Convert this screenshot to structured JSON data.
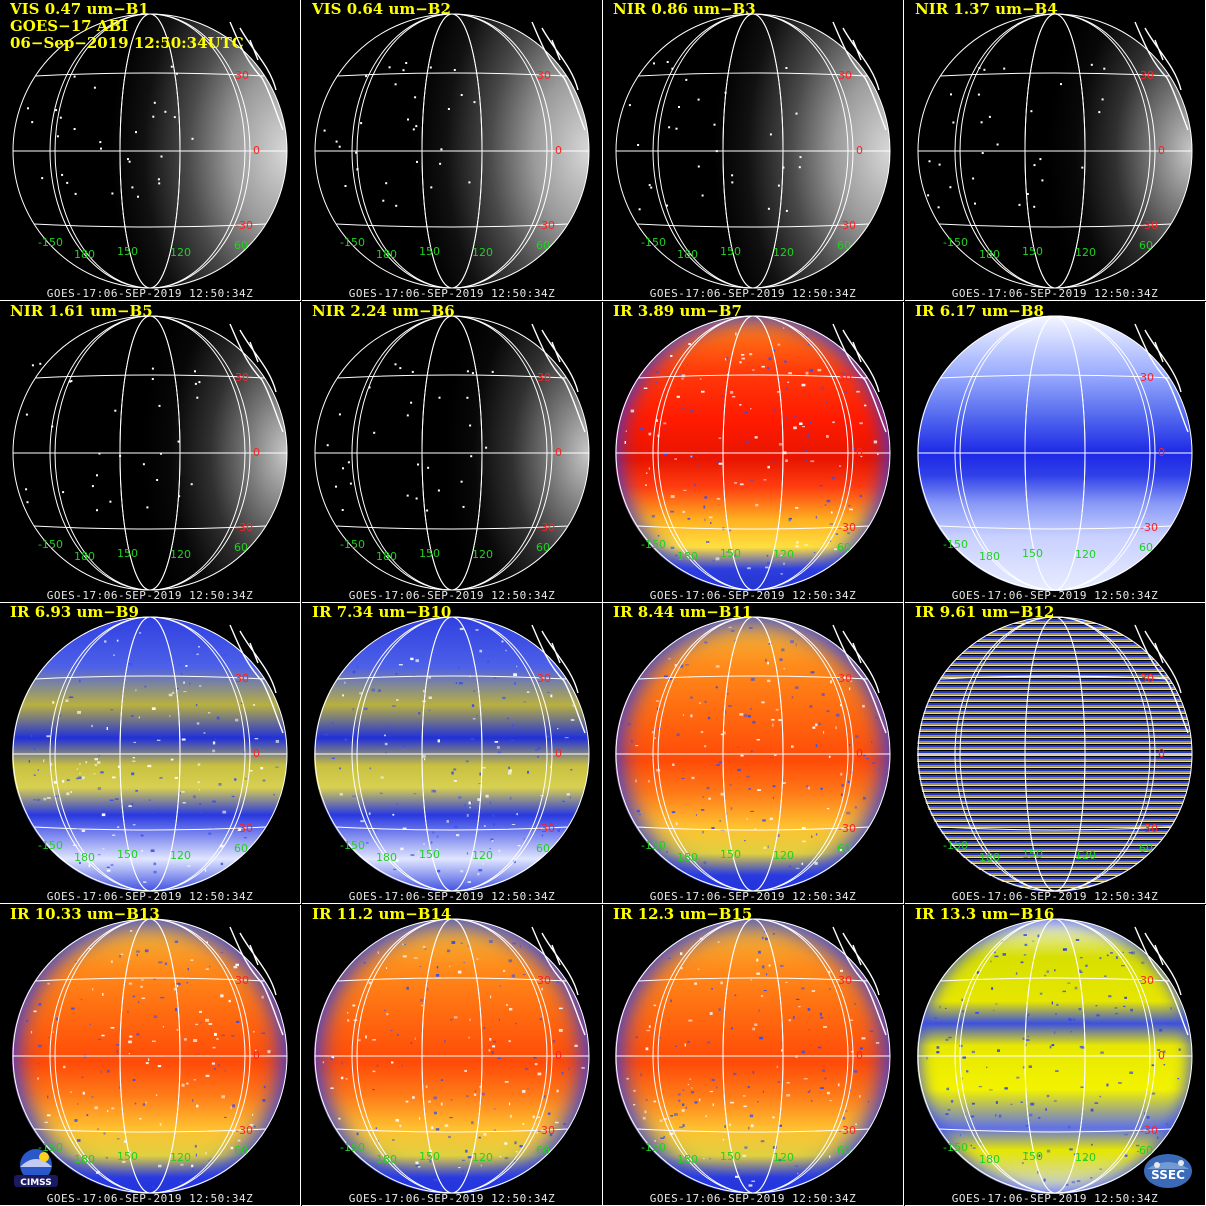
{
  "header": {
    "satellite": "GOES−17 ABI",
    "datetime": "06−Sep−2019 12:50:34UTC"
  },
  "footer_stamp": "GOES-17:06-SEP-2019  12:50:34Z",
  "labels": {
    "lat": [
      "30",
      "0",
      "-30"
    ],
    "lon": [
      "-150",
      "180",
      "150",
      "120",
      "60"
    ]
  },
  "colors": {
    "title": "#ffff00",
    "lat_label": "#ff2020",
    "lon_label": "#20d020",
    "grid": "#ffffff"
  },
  "panels": [
    {
      "title": "VIS 0.47 um−B1",
      "style": "vis",
      "icon": "visible-band-globe"
    },
    {
      "title": "VIS 0.64 um−B2",
      "style": "vis",
      "icon": "visible-band-globe"
    },
    {
      "title": "NIR 0.86 um−B3",
      "style": "vis",
      "icon": "visible-band-globe"
    },
    {
      "title": "NIR 1.37 um−B4",
      "style": "visdim",
      "icon": "visible-band-globe"
    },
    {
      "title": "NIR 1.61 um−B5",
      "style": "visdim",
      "icon": "visible-band-globe"
    },
    {
      "title": "NIR 2.24 um−B6",
      "style": "visdim",
      "icon": "visible-band-globe"
    },
    {
      "title": "IR 3.89 um−B7",
      "style": "red",
      "icon": "infrared-globe"
    },
    {
      "title": "IR 6.17 um−B8",
      "style": "blue",
      "icon": "water-vapor-globe"
    },
    {
      "title": "IR 6.93 um−B9",
      "style": "bluey",
      "icon": "water-vapor-globe"
    },
    {
      "title": "IR 7.34 um−B10",
      "style": "bluey",
      "icon": "water-vapor-globe"
    },
    {
      "title": "IR 8.44 um−B11",
      "style": "orange",
      "icon": "infrared-globe"
    },
    {
      "title": "IR 9.61 um−B12",
      "style": "striped",
      "icon": "ozone-band-globe"
    },
    {
      "title": "IR 10.33 um−B13",
      "style": "orange",
      "icon": "infrared-globe"
    },
    {
      "title": "IR 11.2 um−B14",
      "style": "orange",
      "icon": "infrared-globe"
    },
    {
      "title": "IR 12.3 um−B15",
      "style": "orange",
      "icon": "infrared-globe"
    },
    {
      "title": "IR 13.3 um−B16",
      "style": "yellow",
      "icon": "co2-band-globe"
    }
  ],
  "logos": {
    "left": "CIMSS",
    "right": "SSEC"
  }
}
